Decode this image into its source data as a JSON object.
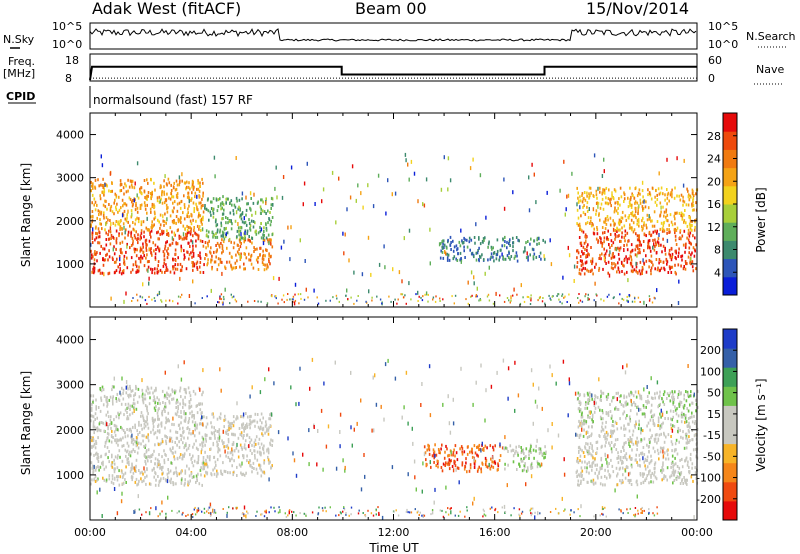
{
  "header": {
    "station": "Adak West (fitACF)",
    "beam": "Beam 00",
    "date": "15/Nov/2014"
  },
  "summary_panels": {
    "nsky": {
      "label": "N.Sky",
      "ticks": [
        "10^5",
        "10^0"
      ]
    },
    "nsearch": {
      "label": "N.Search",
      "ticks": [
        "10^5",
        "10^0"
      ]
    },
    "freq": {
      "label_line1": "Freq.",
      "label_line2": "[MHz]",
      "ticks": [
        "18",
        "8"
      ]
    },
    "nave": {
      "label": "Nave",
      "ticks": [
        "60",
        "0"
      ]
    },
    "cpid": {
      "label": "CPID",
      "text": "normalsound (fast) 157 RF"
    }
  },
  "colors": {
    "power_scale": [
      "#0a1ed8",
      "#2d55b8",
      "#3d8a6e",
      "#5fae5a",
      "#a8cf3a",
      "#f2d21e",
      "#f5a315",
      "#f07a10",
      "#ee4a0c",
      "#e60a0a"
    ],
    "velocity_scale": [
      "#e60a0a",
      "#f04a10",
      "#f5861a",
      "#f7b428",
      "#c8c8c0",
      "#c8c8c0",
      "#6fc24a",
      "#3da056",
      "#3560a8",
      "#1e3cc8"
    ]
  },
  "chart_data": [
    {
      "type": "line",
      "name": "summary",
      "x_unit": "hours UT",
      "xlim": [
        0,
        24
      ],
      "freq_mhz": {
        "x": [
          0,
          0.08,
          9.95,
          9.95,
          17.97,
          17.97,
          24
        ],
        "y": [
          8,
          14,
          14,
          10.5,
          10.5,
          14,
          14
        ],
        "ylim": [
          8,
          18
        ]
      },
      "nave": {
        "value": 5,
        "ylim": [
          0,
          60
        ]
      }
    },
    {
      "type": "heatmap",
      "name": "power",
      "title": "",
      "xlabel": "",
      "ylabel": "Slant Range [km]",
      "xlim": [
        0,
        24
      ],
      "ylim": [
        0,
        4500
      ],
      "yticks": [
        1000,
        2000,
        3000,
        4000
      ],
      "colorbar": {
        "label": "Power [dB]",
        "ticks": [
          "4",
          "8",
          "12",
          "16",
          "20",
          "24",
          "28"
        ],
        "range": [
          0,
          30
        ]
      },
      "regions": [
        {
          "t": [
            0,
            4.5
          ],
          "r": [
            800,
            1800
          ],
          "v": 26
        },
        {
          "t": [
            0,
            4.5
          ],
          "r": [
            1800,
            3000
          ],
          "v": 20
        },
        {
          "t": [
            4.5,
            7.2
          ],
          "r": [
            900,
            1600
          ],
          "v": 22
        },
        {
          "t": [
            4.5,
            7.2
          ],
          "r": [
            1600,
            2600
          ],
          "v": 10
        },
        {
          "t": [
            13.8,
            18
          ],
          "r": [
            1100,
            1650
          ],
          "v": 7
        },
        {
          "t": [
            19.2,
            24
          ],
          "r": [
            800,
            1800
          ],
          "v": 26
        },
        {
          "t": [
            19.2,
            24
          ],
          "r": [
            1800,
            2800
          ],
          "v": 19
        }
      ]
    },
    {
      "type": "heatmap",
      "name": "velocity",
      "title": "",
      "xlabel": "Time UT",
      "ylabel": "Slant Range [km]",
      "xlim": [
        0,
        24
      ],
      "ylim": [
        0,
        4500
      ],
      "yticks": [
        1000,
        2000,
        3000,
        4000
      ],
      "xtick_labels": [
        "00:00",
        "04:00",
        "08:00",
        "12:00",
        "16:00",
        "20:00",
        "00:00"
      ],
      "colorbar": {
        "label": "Velocity [m s⁻¹]",
        "ticks": [
          "-200",
          "-100",
          "-50",
          "-15",
          "15",
          "50",
          "100",
          "200"
        ],
        "range": [
          -250,
          250
        ]
      },
      "regions": [
        {
          "t": [
            0,
            4.5
          ],
          "r": [
            800,
            2000
          ],
          "v": 0
        },
        {
          "t": [
            0,
            4.5
          ],
          "r": [
            2000,
            3000
          ],
          "v": 5
        },
        {
          "t": [
            4.5,
            7.2
          ],
          "r": [
            1000,
            2400
          ],
          "v": -5
        },
        {
          "t": [
            13.2,
            16.3
          ],
          "r": [
            1100,
            1700
          ],
          "v": -160
        },
        {
          "t": [
            16.3,
            18
          ],
          "r": [
            1100,
            1700
          ],
          "v": 40
        },
        {
          "t": [
            19.2,
            24
          ],
          "r": [
            800,
            2200
          ],
          "v": 0
        },
        {
          "t": [
            19.2,
            24
          ],
          "r": [
            2200,
            2900
          ],
          "v": 30
        }
      ]
    }
  ]
}
